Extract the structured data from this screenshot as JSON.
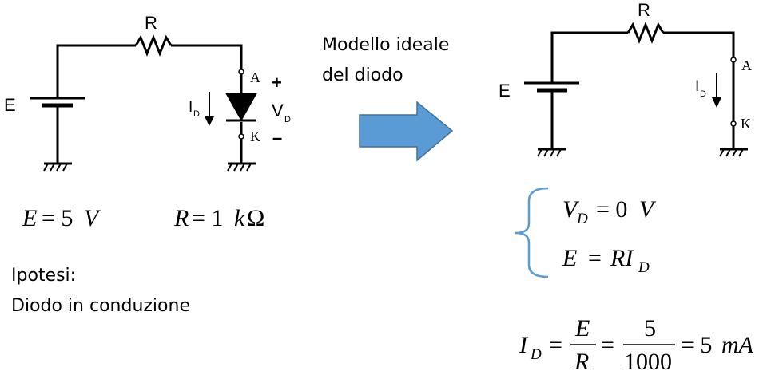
{
  "left_circuit": {
    "resistor_label": "R",
    "source_label": "E",
    "node_a": "A",
    "node_k": "K",
    "plus": "+",
    "minus": "–",
    "current_main": "I",
    "current_sub": "D",
    "voltage_main": "V",
    "voltage_sub": "D"
  },
  "left_values": {
    "e_lhs": "E",
    "e_rhs": "= 5",
    "e_unit": "V",
    "r_lhs": "R",
    "r_rhs": "= 1",
    "r_unit_k": "k",
    "r_unit_ohm": "Ω"
  },
  "hypothesis": {
    "line1": "Ipotesi:",
    "line2": "Diodo in conduzione"
  },
  "transition": {
    "line1": "Modello ideale",
    "line2": "del diodo"
  },
  "right_circuit": {
    "resistor_label": "R",
    "source_label": "E",
    "node_a": "A",
    "node_k": "K",
    "current_main": "I",
    "current_sub": "D"
  },
  "system": {
    "eq1_v": "V",
    "eq1_sub": "D",
    "eq1_rhs": "= 0",
    "eq1_unit": "V",
    "eq2_lhs": "E",
    "eq2_eq": "=",
    "eq2_ri": "RI",
    "eq2_sub": "D"
  },
  "result": {
    "i_main": "I",
    "i_sub": "D",
    "eq": "=",
    "frac1_num": "E",
    "frac1_den": "R",
    "frac2_num": "5",
    "frac2_den": "1000",
    "value": "= 5",
    "unit": "mA"
  },
  "colors": {
    "arrow_fill": "#5b9bd5",
    "arrow_stroke": "#41719c",
    "brace": "#5b9bd5",
    "wire": "#000000"
  }
}
